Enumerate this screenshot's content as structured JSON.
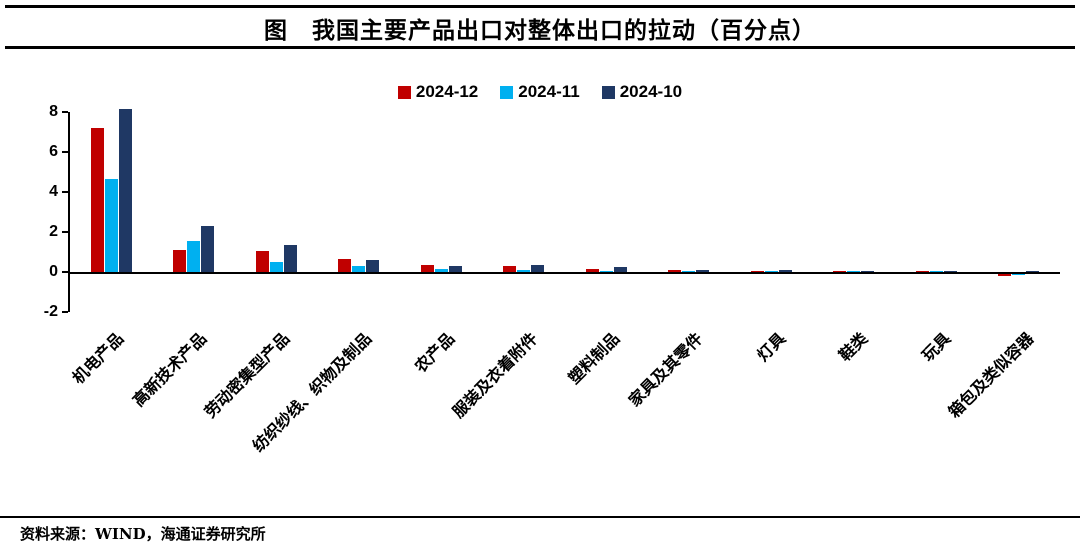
{
  "title": "图　我国主要产品出口对整体出口的拉动（百分点）",
  "source": "资料来源：WIND，海通证券研究所",
  "chart_data": {
    "type": "bar",
    "title": "我国主要产品出口对整体出口的拉动（百分点）",
    "categories": [
      "机电产品",
      "高新技术产品",
      "劳动密集型产品",
      "纺织纱线、织物及制品",
      "农产品",
      "服装及衣着附件",
      "塑料制品",
      "家具及其零件",
      "灯具",
      "鞋类",
      "玩具",
      "箱包及类似容器"
    ],
    "series": [
      {
        "name": "2024-12",
        "color": "#C00000",
        "values": [
          7.2,
          1.1,
          1.05,
          0.65,
          0.35,
          0.3,
          0.15,
          0.1,
          0.05,
          0.05,
          0.05,
          -0.1
        ]
      },
      {
        "name": "2024-11",
        "color": "#00B0F0",
        "values": [
          4.65,
          1.55,
          0.5,
          0.3,
          0.15,
          0.1,
          0.05,
          0.05,
          0.03,
          0.03,
          0.02,
          -0.03
        ]
      },
      {
        "name": "2024-10",
        "color": "#1F3864",
        "values": [
          8.15,
          2.3,
          1.35,
          0.6,
          0.3,
          0.35,
          0.25,
          0.1,
          0.1,
          0.05,
          0.05,
          0.03
        ]
      }
    ],
    "ylim": [
      -2,
      8
    ],
    "yticks": [
      8,
      6,
      4,
      2,
      0,
      -2
    ],
    "grid": false,
    "legend_position": "top",
    "xlabel": "",
    "ylabel": ""
  }
}
